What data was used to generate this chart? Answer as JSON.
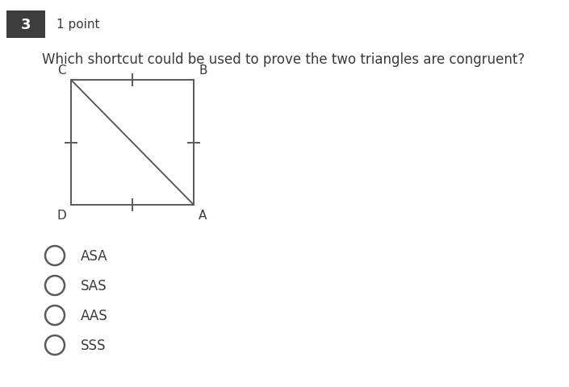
{
  "background_color": "#ffffff",
  "question_number": "3",
  "points_label": "1 point",
  "question_text": "Which shortcut could be used to prove the two triangles are congruent?",
  "header_box_color": "#3d3d3d",
  "line_color": "#5a5a5a",
  "text_color": "#3a3a3a",
  "options": [
    "ASA",
    "SAS",
    "AAS",
    "SSS"
  ],
  "fig_width": 7.05,
  "fig_height": 4.81,
  "dpi": 100
}
